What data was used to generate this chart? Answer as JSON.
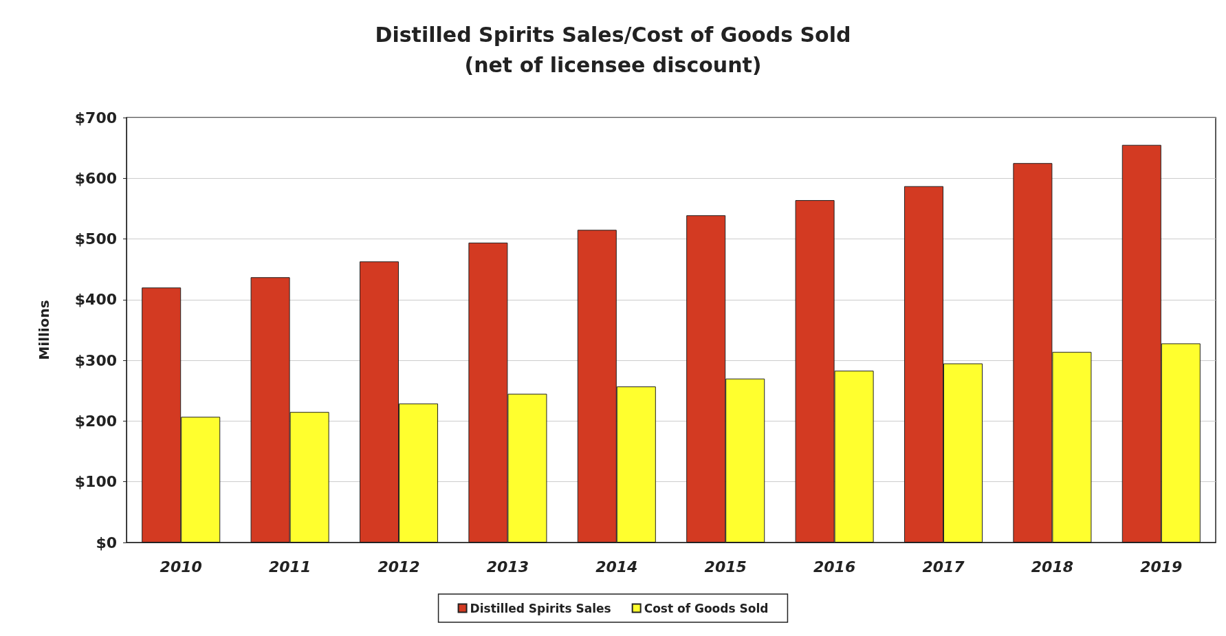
{
  "chart_data": {
    "type": "bar",
    "title": "Distilled Spirits Sales/Cost of Goods Sold",
    "subtitle": "(net of licensee discount)",
    "ylabel": "Millions",
    "categories": [
      "2010",
      "2011",
      "2012",
      "2013",
      "2014",
      "2015",
      "2016",
      "2017",
      "2018",
      "2019"
    ],
    "series": [
      {
        "name": "Distilled Spirits Sales",
        "color": "#d33a22",
        "values": [
          420,
          437,
          463,
          494,
          515,
          539,
          564,
          587,
          625,
          655
        ]
      },
      {
        "name": "Cost of Goods Sold",
        "color": "#ffff2e",
        "values": [
          207,
          215,
          229,
          245,
          257,
          270,
          283,
          295,
          314,
          328
        ]
      }
    ],
    "ylim": [
      0,
      700
    ],
    "yticks": [
      {
        "value": 0,
        "label": "$0"
      },
      {
        "value": 100,
        "label": "$100"
      },
      {
        "value": 200,
        "label": "$200"
      },
      {
        "value": 300,
        "label": "$300"
      },
      {
        "value": 400,
        "label": "$400"
      },
      {
        "value": 500,
        "label": "$500"
      },
      {
        "value": 600,
        "label": "$600"
      },
      {
        "value": 700,
        "label": "$700"
      }
    ],
    "grid": "y",
    "legend": "bottom"
  }
}
